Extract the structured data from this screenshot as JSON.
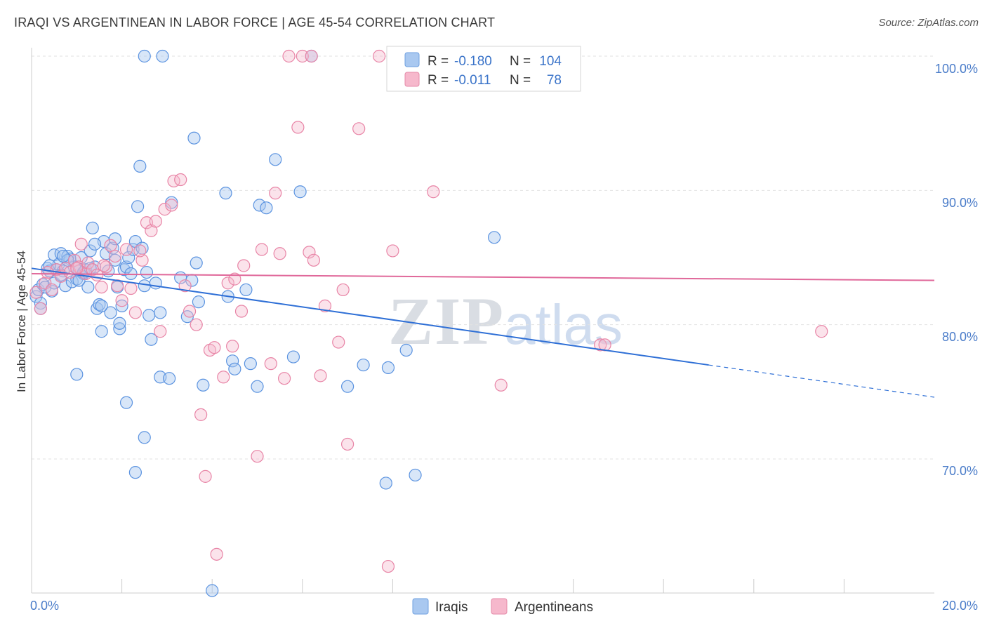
{
  "title": "IRAQI VS ARGENTINEAN IN LABOR FORCE | AGE 45-54 CORRELATION CHART",
  "source": "Source: ZipAtlas.com",
  "watermark": {
    "zip": "ZIP",
    "atlas": "atlas"
  },
  "legend": {
    "r_label": "R =",
    "n_label": "N =",
    "rows": [
      {
        "name": "Iraqis",
        "r": "-0.180",
        "n": "104",
        "fill": "#a9c8f0",
        "stroke": "#6fa0e0"
      },
      {
        "name": "Argentineans",
        "r": "-0.011",
        "n": "78",
        "fill": "#f6b8cc",
        "stroke": "#e58aa8"
      }
    ]
  },
  "chart_data": {
    "type": "scatter",
    "xlabel": "",
    "ylabel": "In Labor Force | Age 45-54",
    "x_tick_labels": [
      "0.0%",
      "20.0%"
    ],
    "y_tick_labels": [
      "100.0%",
      "90.0%",
      "80.0%",
      "70.0%"
    ],
    "y_tick_values": [
      100,
      90,
      80,
      70
    ],
    "xlim": [
      0,
      20
    ],
    "ylim": [
      60,
      100
    ],
    "colors": {
      "iraqis": "#5b93e0",
      "argentineans": "#e884a6",
      "iraqis_line": "#2e6fd6",
      "argentineans_line": "#e0689a"
    },
    "series": [
      {
        "name": "Iraqis",
        "trend": {
          "x_start": 0.0,
          "y_start": 84.2,
          "x_solid_end": 15.0,
          "x_end": 20.0,
          "y_end": 74.6
        },
        "points": [
          [
            0.1,
            82.1
          ],
          [
            0.15,
            82.6
          ],
          [
            0.2,
            81.6
          ],
          [
            0.25,
            83.0
          ],
          [
            0.3,
            82.8
          ],
          [
            0.35,
            84.2
          ],
          [
            0.4,
            84.0
          ],
          [
            0.45,
            82.5
          ],
          [
            0.5,
            85.2
          ],
          [
            0.55,
            84.1
          ],
          [
            0.6,
            84.5
          ],
          [
            0.65,
            85.3
          ],
          [
            0.7,
            84.0
          ],
          [
            0.75,
            82.9
          ],
          [
            0.8,
            85.1
          ],
          [
            0.85,
            84.9
          ],
          [
            0.9,
            83.2
          ],
          [
            0.95,
            84.3
          ],
          [
            1.0,
            83.4
          ],
          [
            1.05,
            84.0
          ],
          [
            1.1,
            85.0
          ],
          [
            1.15,
            83.8
          ],
          [
            1.2,
            84.1
          ],
          [
            1.25,
            82.8
          ],
          [
            1.3,
            85.5
          ],
          [
            1.35,
            87.2
          ],
          [
            1.4,
            84.3
          ],
          [
            1.45,
            81.2
          ],
          [
            1.5,
            81.5
          ],
          [
            1.55,
            79.5
          ],
          [
            1.6,
            86.2
          ],
          [
            1.65,
            85.3
          ],
          [
            1.7,
            84.0
          ],
          [
            1.75,
            80.9
          ],
          [
            1.8,
            85.7
          ],
          [
            1.85,
            86.4
          ],
          [
            1.9,
            82.8
          ],
          [
            1.95,
            79.7
          ],
          [
            2.0,
            81.4
          ],
          [
            2.05,
            84.1
          ],
          [
            2.1,
            84.3
          ],
          [
            2.15,
            85.0
          ],
          [
            2.2,
            83.8
          ],
          [
            2.25,
            85.6
          ],
          [
            2.3,
            86.2
          ],
          [
            2.35,
            88.8
          ],
          [
            2.4,
            91.8
          ],
          [
            2.45,
            85.7
          ],
          [
            2.5,
            82.9
          ],
          [
            2.55,
            83.9
          ],
          [
            2.6,
            80.7
          ],
          [
            2.65,
            78.9
          ],
          [
            2.75,
            83.1
          ],
          [
            2.85,
            76.1
          ],
          [
            3.05,
            76.0
          ],
          [
            3.1,
            89.1
          ],
          [
            3.3,
            83.5
          ],
          [
            3.45,
            80.6
          ],
          [
            3.55,
            83.3
          ],
          [
            3.6,
            93.9
          ],
          [
            3.65,
            84.6
          ],
          [
            3.7,
            81.7
          ],
          [
            3.8,
            75.5
          ],
          [
            4.0,
            60.2
          ],
          [
            4.45,
            77.3
          ],
          [
            4.3,
            89.8
          ],
          [
            4.35,
            82.1
          ],
          [
            4.5,
            76.7
          ],
          [
            4.75,
            82.6
          ],
          [
            4.85,
            77.1
          ],
          [
            5.0,
            75.4
          ],
          [
            5.05,
            88.9
          ],
          [
            5.2,
            88.7
          ],
          [
            5.4,
            92.3
          ],
          [
            5.8,
            77.6
          ],
          [
            5.95,
            89.9
          ],
          [
            6.2,
            100
          ],
          [
            7.0,
            75.4
          ],
          [
            7.35,
            77.0
          ],
          [
            7.85,
            68.2
          ],
          [
            7.9,
            76.8
          ],
          [
            8.3,
            78.1
          ],
          [
            8.5,
            68.8
          ],
          [
            10.25,
            86.5
          ],
          [
            1.0,
            76.3
          ],
          [
            1.4,
            86.0
          ],
          [
            2.1,
            74.2
          ],
          [
            2.5,
            71.6
          ],
          [
            2.3,
            69.0
          ],
          [
            2.85,
            80.9
          ],
          [
            2.5,
            100
          ],
          [
            2.9,
            100
          ],
          [
            0.5,
            83.1
          ],
          [
            0.8,
            84.8
          ],
          [
            1.15,
            83.9
          ],
          [
            0.2,
            81.2
          ],
          [
            0.65,
            83.7
          ],
          [
            1.85,
            84.8
          ],
          [
            1.3,
            84.2
          ],
          [
            0.4,
            84.4
          ],
          [
            0.7,
            85.1
          ],
          [
            1.05,
            83.3
          ],
          [
            1.55,
            81.4
          ],
          [
            1.95,
            80.1
          ]
        ]
      },
      {
        "name": "Argentineans",
        "trend": {
          "x_start": 0.0,
          "y_start": 83.8,
          "x_end": 20.0,
          "y_end": 83.3
        },
        "points": [
          [
            0.1,
            82.4
          ],
          [
            0.2,
            81.2
          ],
          [
            0.3,
            83.1
          ],
          [
            0.45,
            82.6
          ],
          [
            0.55,
            84.1
          ],
          [
            0.65,
            83.6
          ],
          [
            0.75,
            84.2
          ],
          [
            0.85,
            83.9
          ],
          [
            0.95,
            84.8
          ],
          [
            1.05,
            84.3
          ],
          [
            1.1,
            86.0
          ],
          [
            1.2,
            83.8
          ],
          [
            1.25,
            84.6
          ],
          [
            1.35,
            84.1
          ],
          [
            1.45,
            83.7
          ],
          [
            1.55,
            82.8
          ],
          [
            1.65,
            84.3
          ],
          [
            1.75,
            85.9
          ],
          [
            1.85,
            85.1
          ],
          [
            2.0,
            81.8
          ],
          [
            2.1,
            85.6
          ],
          [
            2.2,
            82.7
          ],
          [
            2.3,
            80.9
          ],
          [
            2.45,
            84.8
          ],
          [
            2.55,
            87.6
          ],
          [
            2.65,
            87.0
          ],
          [
            2.75,
            87.7
          ],
          [
            2.85,
            79.5
          ],
          [
            2.95,
            88.6
          ],
          [
            3.1,
            88.9
          ],
          [
            3.15,
            90.7
          ],
          [
            3.3,
            90.8
          ],
          [
            3.4,
            82.9
          ],
          [
            3.5,
            81.0
          ],
          [
            3.65,
            80.0
          ],
          [
            3.75,
            73.3
          ],
          [
            3.85,
            68.7
          ],
          [
            3.95,
            78.1
          ],
          [
            4.05,
            78.3
          ],
          [
            4.1,
            62.9
          ],
          [
            4.25,
            76.1
          ],
          [
            4.35,
            83.1
          ],
          [
            4.45,
            78.4
          ],
          [
            4.5,
            83.4
          ],
          [
            4.65,
            81.0
          ],
          [
            4.7,
            84.4
          ],
          [
            5.0,
            70.2
          ],
          [
            5.1,
            85.6
          ],
          [
            5.3,
            77.1
          ],
          [
            5.4,
            89.8
          ],
          [
            5.5,
            85.3
          ],
          [
            5.6,
            76.0
          ],
          [
            5.9,
            94.7
          ],
          [
            6.15,
            85.4
          ],
          [
            6.25,
            84.8
          ],
          [
            6.4,
            76.2
          ],
          [
            6.5,
            81.4
          ],
          [
            6.8,
            78.7
          ],
          [
            6.9,
            82.6
          ],
          [
            7.0,
            71.1
          ],
          [
            7.25,
            94.6
          ],
          [
            7.7,
            100
          ],
          [
            7.9,
            62.0
          ],
          [
            8.0,
            85.5
          ],
          [
            8.6,
            100
          ],
          [
            8.9,
            89.9
          ],
          [
            10.4,
            75.5
          ],
          [
            12.6,
            78.5
          ],
          [
            12.7,
            78.5
          ],
          [
            17.5,
            79.5
          ],
          [
            5.7,
            100
          ],
          [
            6.0,
            100
          ],
          [
            6.2,
            100
          ],
          [
            1.9,
            82.9
          ],
          [
            2.4,
            85.5
          ],
          [
            0.35,
            83.9
          ],
          [
            1.0,
            84.2
          ],
          [
            1.6,
            84.4
          ]
        ]
      }
    ]
  }
}
